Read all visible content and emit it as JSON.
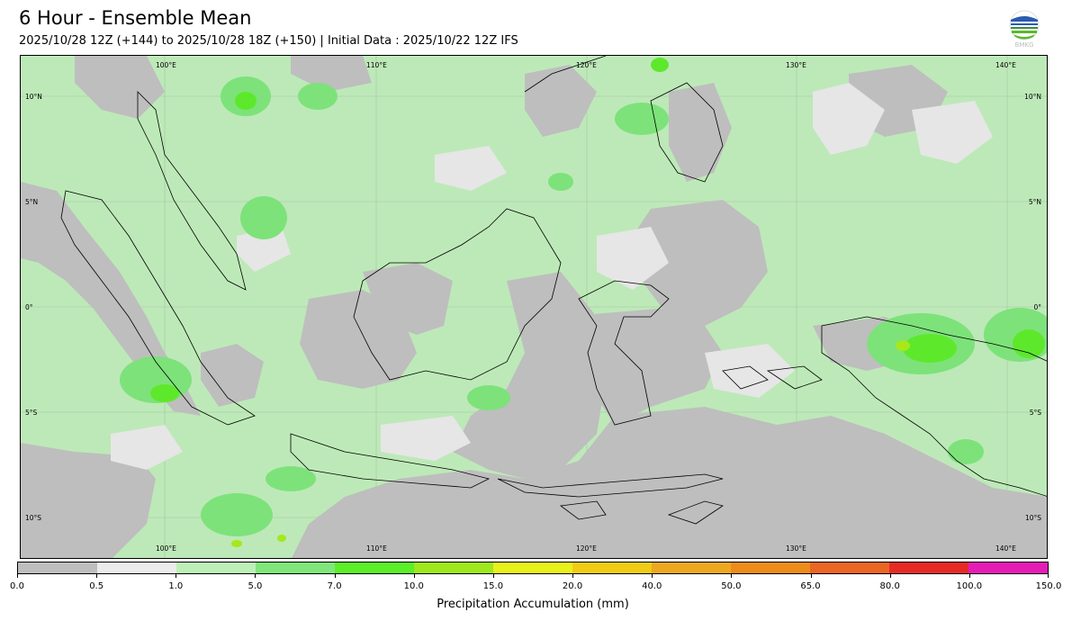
{
  "header": {
    "title": "6 Hour - Ensemble Mean",
    "subtitle": "2025/10/28 12Z (+144) to 2025/10/28 18Z (+150) | Initial Data : 2025/10/22 12Z IFS",
    "logo_text": "BMKG"
  },
  "map": {
    "top_lon_labels": [
      "100°E",
      "110°E",
      "120°E",
      "130°E",
      "140°E"
    ],
    "bottom_lon_labels": [
      "100°E",
      "110°E",
      "120°E",
      "130°E",
      "140°E"
    ],
    "left_lat_labels": [
      "10°N",
      "5°N",
      "0°",
      "5°S",
      "10°S"
    ],
    "right_lat_labels": [
      "10°N",
      "5°N",
      "0°",
      "5°S",
      "10°S"
    ],
    "colors": {
      "ocean_wet": "#bde9b8",
      "dry": "#bebebe",
      "trace": "#e6e6e6",
      "light_rain": "#7de27a",
      "moderate_rain": "#5ee82c",
      "heavy_rain": "#a6e81a"
    }
  },
  "colorbar": {
    "title": "Precipitation Accumulation (mm)",
    "ticks": [
      "0.0",
      "0.5",
      "1.0",
      "5.0",
      "7.0",
      "10.0",
      "15.0",
      "20.0",
      "40.0",
      "50.0",
      "65.0",
      "80.0",
      "100.0",
      "150.0"
    ],
    "colors": [
      "#bebebe",
      "#ececec",
      "#bdf0b9",
      "#7fe77a",
      "#5cef28",
      "#9ee81c",
      "#e8f21a",
      "#f0cc14",
      "#eea820",
      "#ee8c1a",
      "#ea6622",
      "#e82a26",
      "#e61cb6"
    ]
  }
}
